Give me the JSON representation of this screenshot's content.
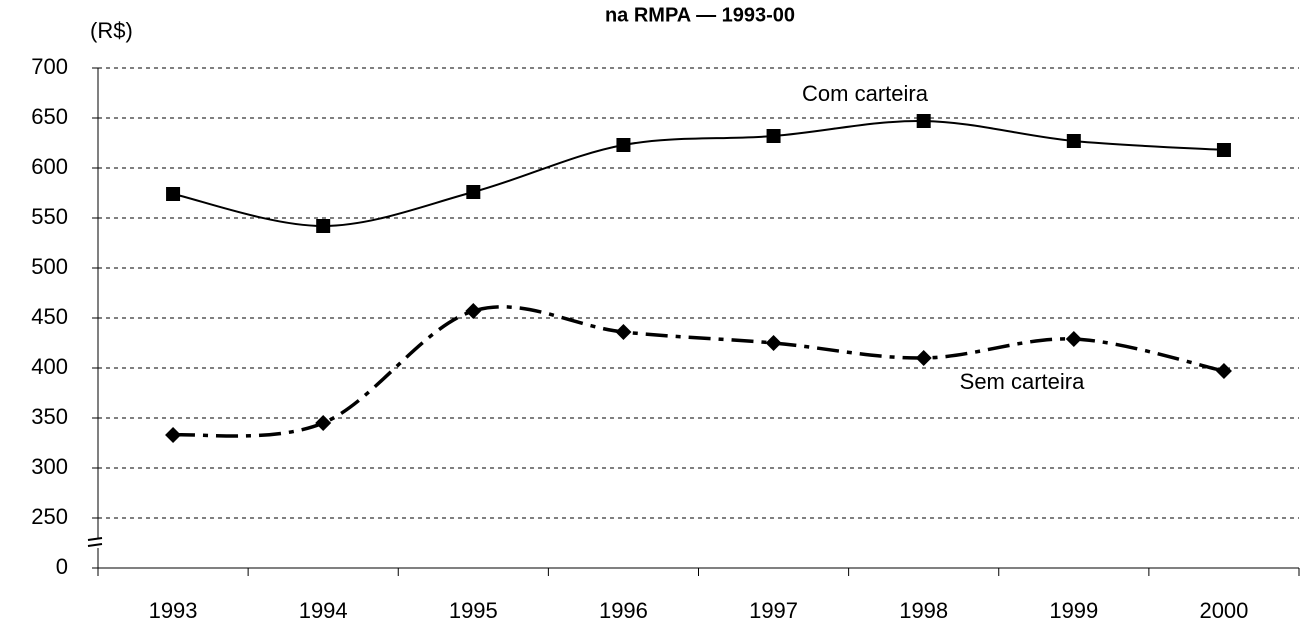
{
  "chart_data": {
    "type": "line",
    "title": "na RMPA — 1993-00",
    "y_label": "(R$)",
    "categories": [
      "1993",
      "1994",
      "1995",
      "1996",
      "1997",
      "1998",
      "1999",
      "2000"
    ],
    "series": [
      {
        "name": "Com carteira",
        "color": "#000000",
        "values": [
          574,
          542,
          576,
          623,
          632,
          647,
          627,
          618
        ]
      },
      {
        "name": "Sem carteira",
        "color": "#000000",
        "values": [
          333,
          345,
          457,
          436,
          425,
          410,
          429,
          397
        ]
      }
    ],
    "ylim": [
      0,
      700
    ],
    "y_break": [
      0,
      250
    ],
    "yticks": [
      0,
      250,
      300,
      350,
      400,
      450,
      500,
      550,
      600,
      650,
      700
    ],
    "grid": true
  }
}
